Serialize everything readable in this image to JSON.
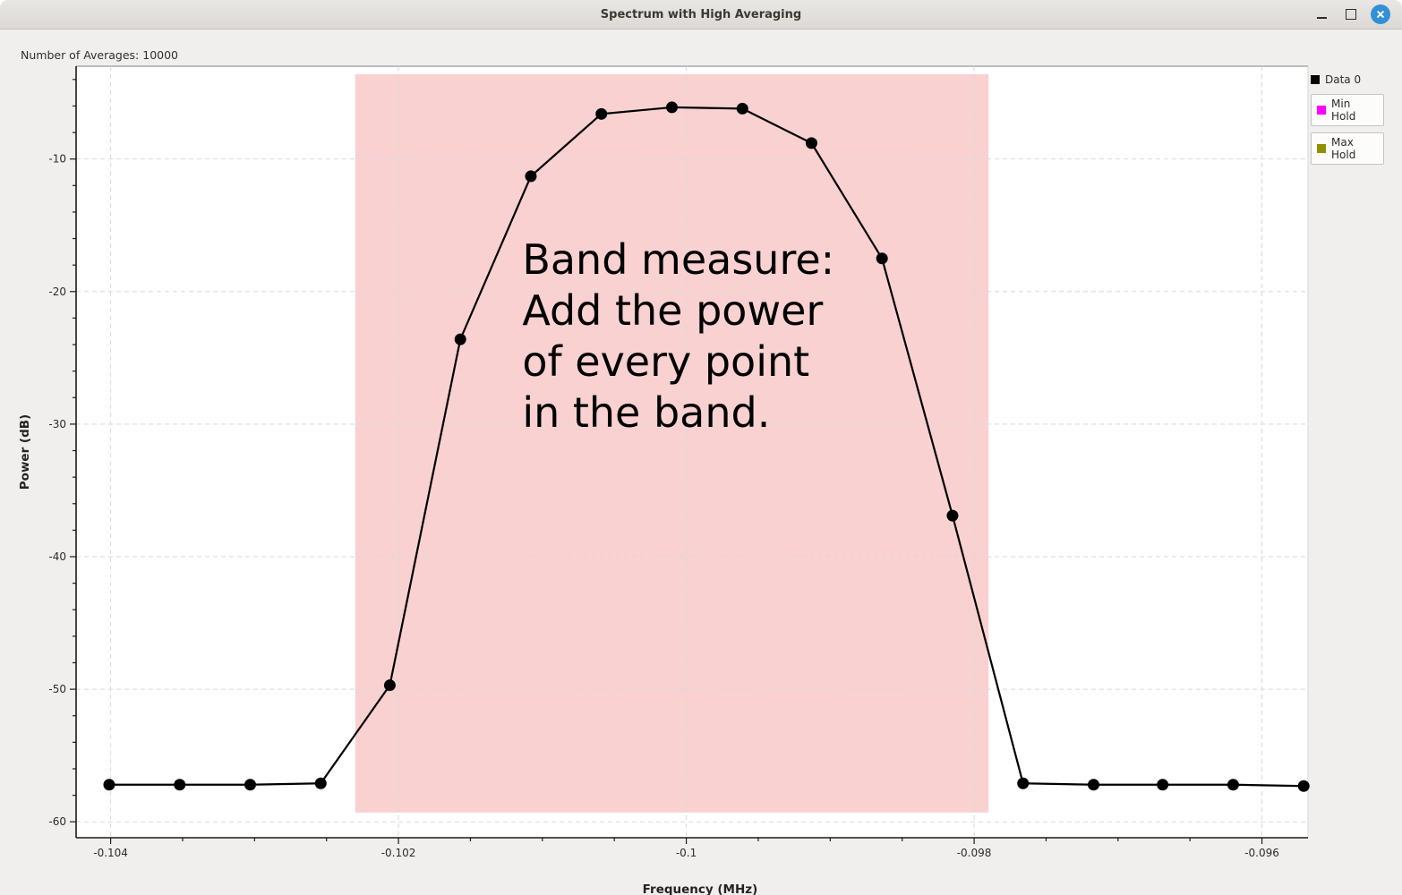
{
  "window": {
    "title": "Spectrum with High Averaging",
    "controls": [
      "minimize",
      "maximize",
      "close"
    ]
  },
  "header": {
    "averages_label": "Number of Averages: 10000"
  },
  "legend": [
    {
      "label": "Data 0",
      "color": "#000000",
      "boxed": false
    },
    {
      "label": "Min Hold",
      "color": "#ff00ff",
      "boxed": true
    },
    {
      "label": "Max Hold",
      "color": "#8f8f00",
      "boxed": true
    }
  ],
  "chart_data": {
    "type": "line",
    "title": "",
    "xlabel": "Frequency (MHz)",
    "ylabel": "Power (dB)",
    "xlim": [
      -0.10424,
      -0.09568
    ],
    "ylim": [
      -61.2,
      -3.0
    ],
    "grid": "major-dashed",
    "legend_position": "top-right-outside",
    "x_major_ticks": [
      -0.104,
      -0.102,
      -0.1,
      -0.098,
      -0.096
    ],
    "x_tick_labels": [
      "-0.104",
      "-0.102",
      "-0.1",
      "-0.098",
      "-0.096"
    ],
    "x_minor_step": 0.0005,
    "y_major_ticks": [
      -10,
      -20,
      -30,
      -40,
      -50,
      -60
    ],
    "y_tick_labels": [
      "-10",
      "-20",
      "-30",
      "-40",
      "-50",
      "-60"
    ],
    "y_minor_step": 2,
    "band_region": {
      "x_start_mhz": -0.1023,
      "x_end_mhz": -0.0979,
      "y_bottom_db": -59.3,
      "y_top_db": -3.6,
      "fill": "#f9d1d1"
    },
    "series": [
      {
        "name": "Data 0",
        "color": "#000000",
        "marker": "circle",
        "x": [
          -0.10401,
          -0.10352,
          -0.10303,
          -0.10254,
          -0.10206,
          -0.10157,
          -0.10108,
          -0.10059,
          -0.1001,
          -0.09961,
          -0.09913,
          -0.09864,
          -0.09815,
          -0.09766,
          -0.09717,
          -0.09669,
          -0.0962,
          -0.09571
        ],
        "y": [
          -57.2,
          -57.2,
          -57.2,
          -57.1,
          -49.7,
          -23.6,
          -11.3,
          -6.6,
          -6.1,
          -6.2,
          -8.8,
          -17.5,
          -36.9,
          -57.1,
          -57.2,
          -57.2,
          -57.2,
          -57.3
        ]
      }
    ],
    "annotation": {
      "lines": [
        "Band measure:",
        "Add the power",
        "of every point",
        "in the band."
      ],
      "x_mhz": -0.10114,
      "y_db_top": -15.7
    }
  }
}
